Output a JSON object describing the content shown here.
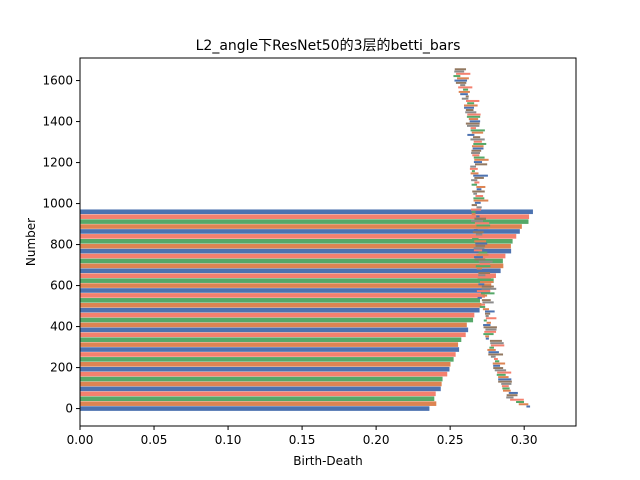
{
  "chart_data": {
    "type": "bar",
    "orientation": "horizontal",
    "title": "L2_angle下ResNet50的3层的betti_bars",
    "xlabel": "Birth-Death",
    "ylabel": "Number",
    "xlim": [
      0,
      0.335
    ],
    "ylim": [
      -85,
      1710
    ],
    "x_ticks": [
      0.0,
      0.05,
      0.1,
      0.15,
      0.2,
      0.25,
      0.3
    ],
    "x_tick_labels": [
      "0.00",
      "0.05",
      "0.10",
      "0.15",
      "0.20",
      "0.25",
      "0.30"
    ],
    "y_ticks": [
      0,
      200,
      400,
      600,
      800,
      1000,
      1200,
      1400,
      1600
    ],
    "y_tick_labels": [
      "0",
      "200",
      "400",
      "600",
      "800",
      "1000",
      "1200",
      "1400",
      "1600"
    ],
    "grid": false,
    "legend": false,
    "colors": [
      "#4c72b0",
      "#dd8452",
      "#55a868",
      "#f4806e",
      "#8c8c8c",
      "#937860"
    ],
    "description": "Persistence barcode: each bar spans from birth to death. Long bars start at 0 and end near the left envelope; short bars sit on the right envelope.",
    "long_bars": {
      "count": 41,
      "y_min": 0,
      "y_max": 960,
      "end_min": 0.238,
      "end_max": 0.305
    },
    "short_bars": {
      "count": 150,
      "y_min": 10,
      "y_max": 1655,
      "start_envelope": [
        [
          10,
          0.3
        ],
        [
          50,
          0.29
        ],
        [
          150,
          0.282
        ],
        [
          300,
          0.276
        ],
        [
          500,
          0.271
        ],
        [
          700,
          0.268
        ],
        [
          900,
          0.266
        ],
        [
          1100,
          0.266
        ],
        [
          1300,
          0.264
        ],
        [
          1500,
          0.26
        ],
        [
          1655,
          0.252
        ]
      ],
      "length_min": 0.002,
      "length_max": 0.01
    }
  }
}
